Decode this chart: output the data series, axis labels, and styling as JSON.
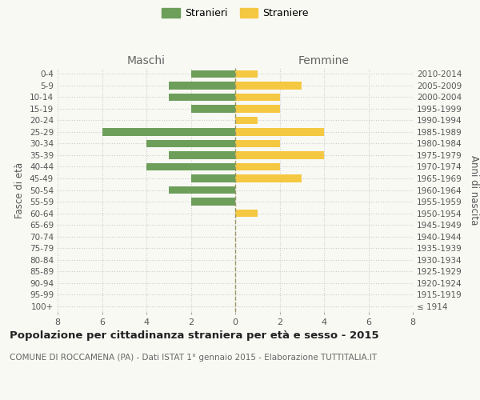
{
  "age_groups": [
    "100+",
    "95-99",
    "90-94",
    "85-89",
    "80-84",
    "75-79",
    "70-74",
    "65-69",
    "60-64",
    "55-59",
    "50-54",
    "45-49",
    "40-44",
    "35-39",
    "30-34",
    "25-29",
    "20-24",
    "15-19",
    "10-14",
    "5-9",
    "0-4"
  ],
  "birth_years": [
    "≤ 1914",
    "1915-1919",
    "1920-1924",
    "1925-1929",
    "1930-1934",
    "1935-1939",
    "1940-1944",
    "1945-1949",
    "1950-1954",
    "1955-1959",
    "1960-1964",
    "1965-1969",
    "1970-1974",
    "1975-1979",
    "1980-1984",
    "1985-1989",
    "1990-1994",
    "1995-1999",
    "2000-2004",
    "2005-2009",
    "2010-2014"
  ],
  "males": [
    0,
    0,
    0,
    0,
    0,
    0,
    0,
    0,
    0,
    2,
    3,
    2,
    4,
    3,
    4,
    6,
    0,
    2,
    3,
    3,
    2
  ],
  "females": [
    0,
    0,
    0,
    0,
    0,
    0,
    0,
    0,
    1,
    0,
    0,
    3,
    2,
    4,
    2,
    4,
    1,
    2,
    2,
    3,
    1
  ],
  "male_color": "#6d9f5b",
  "female_color": "#f5c842",
  "grid_color": "#cccccc",
  "center_line_color": "#999966",
  "bg_color": "#f9f9f4",
  "xlim": 8,
  "xlabel_ticks": [
    -8,
    -6,
    -4,
    -2,
    0,
    2,
    4,
    6,
    8
  ],
  "xlabel_tick_labels": [
    "8",
    "6",
    "4",
    "2",
    "0",
    "2",
    "4",
    "6",
    "8"
  ],
  "title": "Popolazione per cittadinanza straniera per età e sesso - 2015",
  "subtitle": "COMUNE DI ROCCAMENA (PA) - Dati ISTAT 1° gennaio 2015 - Elaborazione TUTTITALIA.IT",
  "legend_stranieri": "Stranieri",
  "legend_straniere": "Straniere",
  "left_header": "Maschi",
  "right_header": "Femmine",
  "left_ylabel": "Fasce di età",
  "right_ylabel": "Anni di nascita"
}
